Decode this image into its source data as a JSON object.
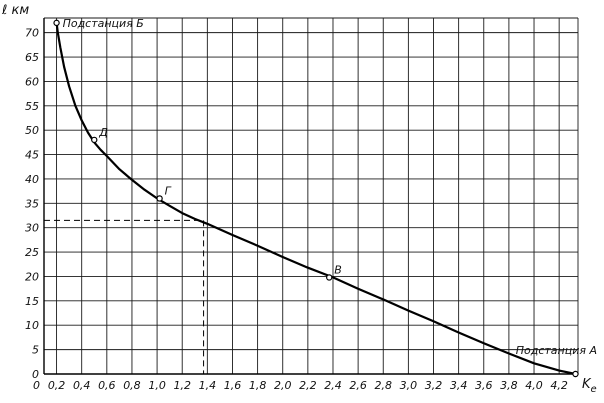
{
  "chart_data": {
    "type": "line",
    "title": "",
    "xlabel": "K",
    "xlabel_sub": "е",
    "ylabel": "ℓ км",
    "xlim": [
      0.1,
      4.35
    ],
    "ylim": [
      0,
      73
    ],
    "x_ticks": [
      0.2,
      0.4,
      0.6,
      0.8,
      1.0,
      1.2,
      1.4,
      1.6,
      1.8,
      2.0,
      2.2,
      2.4,
      2.6,
      2.8,
      3.0,
      3.2,
      3.4,
      3.6,
      3.8,
      4.0,
      4.2
    ],
    "x_tick_labels": [
      "0,2",
      "0,4",
      "0,6",
      "0,8",
      "1,0",
      "1,2",
      "1,4",
      "1,6",
      "1,8",
      "2,0",
      "2,2",
      "2,4",
      "2,6",
      "2,8",
      "3,0",
      "3,2",
      "3,4",
      "3,6",
      "3,8",
      "4,0",
      "4,2"
    ],
    "y_ticks": [
      0,
      5,
      10,
      15,
      20,
      25,
      30,
      35,
      40,
      45,
      50,
      55,
      60,
      65,
      70
    ],
    "y_tick_labels": [
      "0",
      "5",
      "10",
      "15",
      "20",
      "25",
      "30",
      "35",
      "40",
      "45",
      "50",
      "55",
      "60",
      "65",
      "70"
    ],
    "grid": true,
    "series": [
      {
        "x": [
          0.2,
          0.21,
          0.23,
          0.26,
          0.3,
          0.35,
          0.4,
          0.45,
          0.5,
          0.55,
          0.6,
          0.7,
          0.8,
          0.9,
          1.0,
          1.1,
          1.2,
          1.3,
          1.4,
          1.6,
          1.8,
          2.0,
          2.2,
          2.4,
          2.6,
          2.8,
          3.0,
          3.2,
          3.4,
          3.6,
          3.8,
          4.0,
          4.2,
          4.33
        ],
        "y": [
          72,
          70,
          67,
          63,
          59,
          55,
          52,
          49.5,
          47.5,
          46,
          44.7,
          42,
          39.8,
          37.8,
          36,
          34.5,
          33,
          31.8,
          30.8,
          28.5,
          26.3,
          24,
          21.8,
          19.8,
          17.5,
          15.3,
          13,
          10.8,
          8.5,
          6.3,
          4.2,
          2.2,
          0.7,
          0
        ]
      }
    ],
    "points": [
      {
        "label": "Д",
        "x": 0.5,
        "y": 48
      },
      {
        "label": "Г",
        "x": 1.02,
        "y": 36
      },
      {
        "label": "В",
        "x": 2.37,
        "y": 19.8
      }
    ],
    "end_points": [
      {
        "label": "Подстанция Б",
        "x": 0.2,
        "y": 72
      },
      {
        "label": "Подстанция А",
        "x": 4.33,
        "y": 0
      }
    ],
    "reference_lines": {
      "x": 1.37,
      "y": 31.5
    }
  }
}
